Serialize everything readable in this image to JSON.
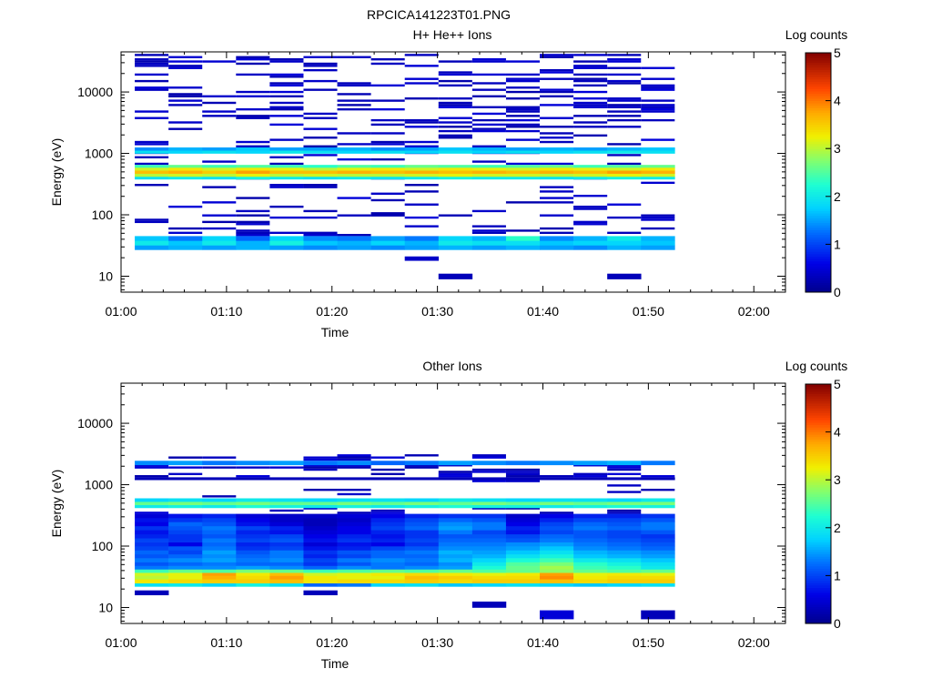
{
  "figure_title": "RPCICA141223T01.PNG",
  "chart_data": [
    {
      "type": "heatmap",
      "title": "H+ He++ Ions",
      "xlabel": "Time",
      "ylabel": "Energy (eV)",
      "x_ticks": [
        "01:00",
        "01:10",
        "01:20",
        "01:30",
        "01:40",
        "01:50",
        "02:00"
      ],
      "x_range_minutes": [
        0,
        63
      ],
      "y_scale": "log",
      "y_range": [
        5.5,
        45000
      ],
      "y_ticks": [
        {
          "value": 10,
          "label": "10"
        },
        {
          "value": 100,
          "label": "100"
        },
        {
          "value": 1000,
          "label": "1000"
        },
        {
          "value": 10000,
          "label": "10000"
        }
      ],
      "colorbar": {
        "label": "Log counts",
        "range": [
          0,
          5
        ],
        "ticks": [
          "0",
          "1",
          "2",
          "3",
          "4",
          "5"
        ]
      },
      "grid": false,
      "time_bins_start_min": [
        1.3,
        4.5,
        7.7,
        10.9,
        14.1,
        17.3,
        20.5,
        23.7,
        26.9,
        30.1,
        33.3,
        36.5,
        39.7,
        42.9,
        46.1,
        49.3
      ],
      "time_bin_width_min": 3.2,
      "bands": [
        {
          "e_low": 27,
          "e_high": 32,
          "levels": [
            1.5,
            1.6,
            1.5,
            1.6,
            1.5,
            1.4,
            1.5,
            1.4,
            1.5,
            1.6,
            1.5,
            1.6,
            1.5,
            1.4,
            1.6,
            1.5
          ]
        },
        {
          "e_low": 32,
          "e_high": 38,
          "levels": [
            2.0,
            1.7,
            2.0,
            1.6,
            2.1,
            1.7,
            1.6,
            1.8,
            1.6,
            2.0,
            1.9,
            1.9,
            1.7,
            1.8,
            1.8,
            1.7
          ]
        },
        {
          "e_low": 38,
          "e_high": 45,
          "levels": [
            1.7,
            1.3,
            1.8,
            1.2,
            1.8,
            1.4,
            1.3,
            1.5,
            1.3,
            1.8,
            1.6,
            2.3,
            1.4,
            1.6,
            2.0,
            1.6
          ]
        },
        {
          "e_low": 380,
          "e_high": 420,
          "levels": [
            1.9,
            2.0,
            1.9,
            2.1,
            2.0,
            1.9,
            2.0,
            1.9,
            2.0,
            2.1,
            2.0,
            2.0,
            1.9,
            2.0,
            2.1,
            2.0
          ]
        },
        {
          "e_low": 420,
          "e_high": 470,
          "levels": [
            3.0,
            3.1,
            3.0,
            3.2,
            3.0,
            3.1,
            3.0,
            3.0,
            3.1,
            3.2,
            3.1,
            3.1,
            3.0,
            3.1,
            3.2,
            3.1
          ]
        },
        {
          "e_low": 470,
          "e_high": 530,
          "levels": [
            3.6,
            3.7,
            3.5,
            3.8,
            3.6,
            3.6,
            3.7,
            3.6,
            3.7,
            3.6,
            3.7,
            3.6,
            3.7,
            3.6,
            3.8,
            3.7
          ]
        },
        {
          "e_low": 530,
          "e_high": 590,
          "levels": [
            3.1,
            3.3,
            3.1,
            3.3,
            3.2,
            3.0,
            3.2,
            3.3,
            3.1,
            3.3,
            3.2,
            3.1,
            3.3,
            3.2,
            3.1,
            3.3
          ]
        },
        {
          "e_low": 590,
          "e_high": 650,
          "levels": [
            2.4,
            2.6,
            2.4,
            2.5,
            2.4,
            2.3,
            2.5,
            2.4,
            2.6,
            2.5,
            2.4,
            2.5,
            2.6,
            2.4,
            2.5,
            2.6
          ]
        },
        {
          "e_low": 1000,
          "e_high": 1120,
          "levels": [
            1.9,
            1.8,
            1.9,
            1.8,
            2.0,
            1.9,
            1.8,
            1.9,
            1.8,
            1.9,
            1.8,
            1.9,
            1.8,
            1.9,
            2.0,
            1.9
          ]
        },
        {
          "e_low": 1120,
          "e_high": 1250,
          "levels": [
            1.4,
            1.6,
            1.5,
            1.7,
            1.5,
            1.5,
            1.6,
            1.4,
            1.5,
            1.7,
            1.6,
            1.5,
            1.6,
            1.5,
            1.6,
            1.7
          ]
        },
        {
          "e_low": 9,
          "e_high": 11,
          "levels": [
            null,
            null,
            null,
            null,
            null,
            null,
            null,
            null,
            null,
            0.3,
            null,
            null,
            null,
            null,
            0.3,
            null
          ]
        },
        {
          "e_low": 18,
          "e_high": 21,
          "levels": [
            null,
            null,
            null,
            null,
            null,
            null,
            null,
            null,
            0.4,
            null,
            null,
            null,
            null,
            null,
            null,
            null
          ]
        }
      ],
      "sparse_level": 0.35,
      "sparse_seed": 11,
      "sparse_ranges": [
        [
          45,
          380,
          0.18
        ],
        [
          650,
          1000,
          0.22
        ],
        [
          1250,
          40000,
          0.3
        ]
      ]
    },
    {
      "type": "heatmap",
      "title": "Other Ions",
      "xlabel": "Time",
      "ylabel": "Energy (eV)",
      "x_ticks": [
        "01:00",
        "01:10",
        "01:20",
        "01:30",
        "01:40",
        "01:50",
        "02:00"
      ],
      "x_range_minutes": [
        0,
        63
      ],
      "y_scale": "log",
      "y_range": [
        5.5,
        45000
      ],
      "y_ticks": [
        {
          "value": 10,
          "label": "10"
        },
        {
          "value": 100,
          "label": "100"
        },
        {
          "value": 1000,
          "label": "1000"
        },
        {
          "value": 10000,
          "label": "10000"
        }
      ],
      "colorbar": {
        "label": "Log counts",
        "range": [
          0,
          5
        ],
        "ticks": [
          "0",
          "1",
          "2",
          "3",
          "4",
          "5"
        ]
      },
      "grid": false,
      "time_bins_start_min": [
        1.3,
        4.5,
        7.7,
        10.9,
        14.1,
        17.3,
        20.5,
        23.7,
        26.9,
        30.1,
        33.3,
        36.5,
        39.7,
        42.9,
        46.1,
        49.3
      ],
      "time_bin_width_min": 3.2,
      "bands": [
        {
          "e_low": 16,
          "e_high": 19,
          "levels": [
            0.3,
            null,
            null,
            null,
            null,
            0.3,
            null,
            null,
            null,
            null,
            null,
            null,
            null,
            null,
            null,
            null
          ]
        },
        {
          "e_low": 22,
          "e_high": 25,
          "levels": [
            1.9,
            2.0,
            1.8,
            2.1,
            1.9,
            1.2,
            1.3,
            1.8,
            1.9,
            1.7,
            1.8,
            1.9,
            1.8,
            1.7,
            1.8,
            1.9
          ]
        },
        {
          "e_low": 25,
          "e_high": 29,
          "levels": [
            3.3,
            3.4,
            3.5,
            3.5,
            3.6,
            3.3,
            3.4,
            3.4,
            3.5,
            3.4,
            3.5,
            3.5,
            3.6,
            3.4,
            3.5,
            3.5
          ]
        },
        {
          "e_low": 29,
          "e_high": 33,
          "levels": [
            3.0,
            3.2,
            3.7,
            3.4,
            3.8,
            3.3,
            3.2,
            3.2,
            3.6,
            3.5,
            3.4,
            3.4,
            3.9,
            3.3,
            3.4,
            3.4
          ]
        },
        {
          "e_low": 33,
          "e_high": 37,
          "levels": [
            3.1,
            3.2,
            3.8,
            3.3,
            3.6,
            3.1,
            3.2,
            3.3,
            3.4,
            3.3,
            3.2,
            3.3,
            3.8,
            3.2,
            3.3,
            3.2
          ]
        },
        {
          "e_low": 37,
          "e_high": 42,
          "levels": [
            2.4,
            2.6,
            2.5,
            2.7,
            2.6,
            2.4,
            2.5,
            2.6,
            2.5,
            2.6,
            2.5,
            2.6,
            2.8,
            2.6,
            2.5,
            2.6
          ]
        },
        {
          "e_low": 42,
          "e_high": 48,
          "levels": [
            1.3,
            1.4,
            1.4,
            1.5,
            1.4,
            1.2,
            1.4,
            1.3,
            1.4,
            1.5,
            2.2,
            2.6,
            2.9,
            2.4,
            2.3,
            2.0
          ]
        },
        {
          "e_low": 48,
          "e_high": 55,
          "levels": [
            1.1,
            1.2,
            1.3,
            1.2,
            1.2,
            0.9,
            1.1,
            1.3,
            1.2,
            1.4,
            2.0,
            2.5,
            2.7,
            2.3,
            2.1,
            1.9
          ]
        },
        {
          "e_low": 55,
          "e_high": 64,
          "levels": [
            1.3,
            1.4,
            1.5,
            1.3,
            1.4,
            1.0,
            1.3,
            1.4,
            1.3,
            1.6,
            1.8,
            2.2,
            2.4,
            2.0,
            1.9,
            1.7
          ]
        },
        {
          "e_low": 64,
          "e_high": 74,
          "levels": [
            1.1,
            1.2,
            1.4,
            1.2,
            1.3,
            0.8,
            1.0,
            1.2,
            1.2,
            1.5,
            1.6,
            1.9,
            2.1,
            1.7,
            1.6,
            1.5
          ]
        },
        {
          "e_low": 74,
          "e_high": 86,
          "levels": [
            1.2,
            1.0,
            1.5,
            1.1,
            1.3,
            0.9,
            1.1,
            1.2,
            1.3,
            1.6,
            1.5,
            1.7,
            1.9,
            1.6,
            1.5,
            1.4
          ]
        },
        {
          "e_low": 86,
          "e_high": 100,
          "levels": [
            1.0,
            1.1,
            1.3,
            0.9,
            1.0,
            0.7,
            0.8,
            1.0,
            1.1,
            1.4,
            1.4,
            1.5,
            1.7,
            1.4,
            1.3,
            1.2
          ]
        },
        {
          "e_low": 100,
          "e_high": 116,
          "levels": [
            0.9,
            0.6,
            1.2,
            0.8,
            0.9,
            0.5,
            0.7,
            0.6,
            0.9,
            1.3,
            1.3,
            1.4,
            1.5,
            1.3,
            1.2,
            1.1
          ]
        },
        {
          "e_low": 116,
          "e_high": 135,
          "levels": [
            1.0,
            0.9,
            1.3,
            1.0,
            1.1,
            0.7,
            0.9,
            0.8,
            1.0,
            1.2,
            1.2,
            1.1,
            1.3,
            1.2,
            1.1,
            1.0
          ]
        },
        {
          "e_low": 135,
          "e_high": 157,
          "levels": [
            0.8,
            0.9,
            1.1,
            0.9,
            1.0,
            0.6,
            0.8,
            0.7,
            0.9,
            1.1,
            1.1,
            1.0,
            1.2,
            1.1,
            1.0,
            0.9
          ]
        },
        {
          "e_low": 157,
          "e_high": 183,
          "levels": [
            0.7,
            1.0,
            1.2,
            0.8,
            0.7,
            0.5,
            0.6,
            0.8,
            0.9,
            1.3,
            1.0,
            0.7,
            1.0,
            1.1,
            1.0,
            1.1
          ]
        },
        {
          "e_low": 183,
          "e_high": 213,
          "levels": [
            0.9,
            1.1,
            1.3,
            1.0,
            0.8,
            0.4,
            0.6,
            1.0,
            1.2,
            1.5,
            1.3,
            0.8,
            1.1,
            1.3,
            1.2,
            1.3
          ]
        },
        {
          "e_low": 213,
          "e_high": 248,
          "levels": [
            0.6,
            1.2,
            1.1,
            0.7,
            0.5,
            0.3,
            0.5,
            0.9,
            1.1,
            1.4,
            1.3,
            0.6,
            1.0,
            1.2,
            1.1,
            1.3
          ]
        },
        {
          "e_low": 248,
          "e_high": 288,
          "levels": [
            0.7,
            0.9,
            1.0,
            0.6,
            0.4,
            0.3,
            0.4,
            0.8,
            1.0,
            1.2,
            1.1,
            0.5,
            0.8,
            1.0,
            1.0,
            1.1
          ]
        },
        {
          "e_low": 288,
          "e_high": 335,
          "levels": [
            0.5,
            0.7,
            0.8,
            0.5,
            0.4,
            0.4,
            0.5,
            0.6,
            0.8,
            0.9,
            0.9,
            0.4,
            0.6,
            0.8,
            0.8,
            0.9
          ]
        },
        {
          "e_low": 420,
          "e_high": 470,
          "levels": [
            2.0,
            2.1,
            2.0,
            2.2,
            2.1,
            2.0,
            2.1,
            2.0,
            2.1,
            2.2,
            2.1,
            2.1,
            2.0,
            2.1,
            2.2,
            2.1
          ]
        },
        {
          "e_low": 470,
          "e_high": 530,
          "levels": [
            2.6,
            2.7,
            2.6,
            2.7,
            2.6,
            2.6,
            2.7,
            2.6,
            2.7,
            2.6,
            2.7,
            2.6,
            2.7,
            2.6,
            2.7,
            2.7
          ]
        },
        {
          "e_low": 530,
          "e_high": 600,
          "levels": [
            1.8,
            1.9,
            1.8,
            2.0,
            1.9,
            1.8,
            1.9,
            1.9,
            1.8,
            2.0,
            1.9,
            1.8,
            1.9,
            1.9,
            1.8,
            2.0
          ]
        },
        {
          "e_low": 1200,
          "e_high": 1320,
          "levels": [
            0.3,
            0.3,
            0.3,
            0.3,
            0.3,
            0.3,
            0.3,
            0.3,
            0.3,
            0.3,
            0.3,
            0.3,
            0.3,
            0.3,
            0.3,
            0.3
          ]
        },
        {
          "e_low": 2100,
          "e_high": 2450,
          "levels": [
            1.4,
            1.5,
            1.3,
            1.4,
            1.5,
            1.3,
            1.4,
            1.2,
            1.3,
            1.5,
            1.4,
            1.3,
            1.4,
            1.5,
            1.6,
            1.3
          ]
        },
        {
          "e_low": 10,
          "e_high": 12.5,
          "levels": [
            null,
            null,
            null,
            null,
            null,
            null,
            null,
            null,
            null,
            null,
            0.3,
            null,
            null,
            null,
            null,
            null
          ]
        },
        {
          "e_low": 6.5,
          "e_high": 9,
          "levels": [
            null,
            null,
            null,
            null,
            null,
            null,
            null,
            null,
            null,
            null,
            null,
            null,
            0.5,
            null,
            null,
            0.3
          ]
        }
      ],
      "sparse_level": 0.35,
      "sparse_seed": 29,
      "sparse_ranges": [
        [
          335,
          420,
          0.25
        ],
        [
          620,
          1200,
          0.08
        ],
        [
          1320,
          2100,
          0.35
        ],
        [
          2450,
          2900,
          0.2
        ]
      ]
    }
  ]
}
